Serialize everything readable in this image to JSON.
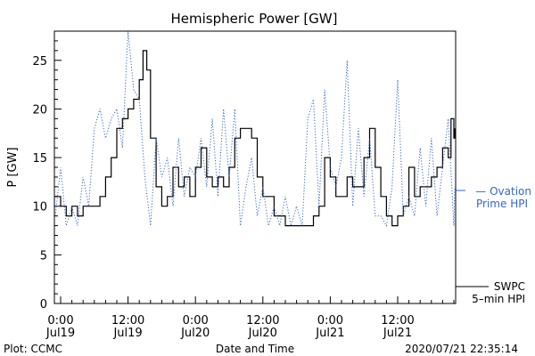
{
  "chart_data": {
    "type": "line",
    "title": "Hemispheric Power [GW]",
    "xlabel": "Date and Time",
    "ylabel": "P [GW]",
    "xlim": [
      "2020-07-19T00:00",
      "2020-07-21T22:35"
    ],
    "ylim": [
      0,
      28
    ],
    "y_ticks": [
      0,
      5,
      10,
      15,
      20,
      25
    ],
    "x_ticks": [
      {
        "t": "2020-07-19T00:00",
        "time": "0:00",
        "day": "Jul19"
      },
      {
        "t": "2020-07-19T12:00",
        "time": "12:00",
        "day": "Jul19"
      },
      {
        "t": "2020-07-20T00:00",
        "time": "0:00",
        "day": "Jul20"
      },
      {
        "t": "2020-07-20T12:00",
        "time": "12:00",
        "day": "Jul20"
      },
      {
        "t": "2020-07-21T00:00",
        "time": "0:00",
        "day": "Jul21"
      },
      {
        "t": "2020-07-21T12:00",
        "time": "12:00",
        "day": "Jul21"
      }
    ],
    "grid": false,
    "legend": [
      {
        "label_lines": [
          "— Ovation",
          "Prime HPI"
        ],
        "color": "#3366cc",
        "style": "dotted"
      },
      {
        "label_lines": [
          "SWPC",
          "5–min HPI"
        ],
        "color": "#000000",
        "style": "solid"
      }
    ],
    "series": [
      {
        "name": "SWPC 5-min HPI",
        "color": "#000000",
        "style": "step",
        "x": [
          "2020-07-18T22:00",
          "2020-07-19T00:00",
          "2020-07-19T01:00",
          "2020-07-19T02:00",
          "2020-07-19T03:00",
          "2020-07-19T04:00",
          "2020-07-19T05:00",
          "2020-07-19T06:00",
          "2020-07-19T07:00",
          "2020-07-19T08:00",
          "2020-07-19T09:00",
          "2020-07-19T10:00",
          "2020-07-19T11:00",
          "2020-07-19T12:00",
          "2020-07-19T13:00",
          "2020-07-19T14:00",
          "2020-07-19T14:40",
          "2020-07-19T15:20",
          "2020-07-19T16:00",
          "2020-07-19T17:00",
          "2020-07-19T18:00",
          "2020-07-19T19:00",
          "2020-07-19T20:00",
          "2020-07-19T21:00",
          "2020-07-19T22:00",
          "2020-07-19T23:00",
          "2020-07-20T00:00",
          "2020-07-20T01:00",
          "2020-07-20T02:00",
          "2020-07-20T03:00",
          "2020-07-20T04:00",
          "2020-07-20T05:00",
          "2020-07-20T06:00",
          "2020-07-20T07:00",
          "2020-07-20T08:00",
          "2020-07-20T09:00",
          "2020-07-20T10:00",
          "2020-07-20T11:00",
          "2020-07-20T12:00",
          "2020-07-20T14:00",
          "2020-07-20T16:00",
          "2020-07-20T18:00",
          "2020-07-20T20:00",
          "2020-07-20T21:00",
          "2020-07-20T22:00",
          "2020-07-20T23:00",
          "2020-07-21T00:00",
          "2020-07-21T01:00",
          "2020-07-21T02:00",
          "2020-07-21T03:00",
          "2020-07-21T04:00",
          "2020-07-21T05:00",
          "2020-07-21T06:00",
          "2020-07-21T07:00",
          "2020-07-21T08:00",
          "2020-07-21T09:00",
          "2020-07-21T10:00",
          "2020-07-21T11:00",
          "2020-07-21T12:00",
          "2020-07-21T13:00",
          "2020-07-21T14:00",
          "2020-07-21T15:00",
          "2020-07-21T16:00",
          "2020-07-21T17:00",
          "2020-07-21T18:00",
          "2020-07-21T19:00",
          "2020-07-21T20:00",
          "2020-07-21T21:00",
          "2020-07-21T21:30",
          "2020-07-21T22:00",
          "2020-07-21T22:35"
        ],
        "y": [
          11,
          10,
          9,
          10,
          9,
          10,
          10,
          10,
          11,
          13,
          15,
          18,
          19,
          20,
          21,
          23,
          26,
          24,
          17,
          12,
          10,
          11,
          14,
          12,
          13,
          11,
          14,
          16,
          13,
          12,
          13,
          12,
          14,
          17,
          18,
          18,
          17,
          13,
          11,
          9,
          8,
          8,
          8,
          9,
          10,
          15,
          13,
          11,
          11,
          13,
          12,
          12,
          15,
          18,
          14,
          11,
          9,
          8,
          9,
          10,
          14,
          11,
          12,
          12,
          13,
          14,
          16,
          15,
          19,
          17,
          18
        ]
      },
      {
        "name": "Ovation Prime HPI",
        "color": "#3366cc",
        "style": "dotted",
        "x": [
          "2020-07-18T22:00",
          "2020-07-19T00:00",
          "2020-07-19T01:00",
          "2020-07-19T02:00",
          "2020-07-19T03:00",
          "2020-07-19T04:00",
          "2020-07-19T05:00",
          "2020-07-19T06:00",
          "2020-07-19T07:00",
          "2020-07-19T08:00",
          "2020-07-19T09:00",
          "2020-07-19T10:00",
          "2020-07-19T11:00",
          "2020-07-19T12:00",
          "2020-07-19T13:00",
          "2020-07-19T14:00",
          "2020-07-19T15:00",
          "2020-07-19T16:00",
          "2020-07-19T17:00",
          "2020-07-19T18:00",
          "2020-07-19T19:00",
          "2020-07-19T20:00",
          "2020-07-19T21:00",
          "2020-07-19T22:00",
          "2020-07-19T23:00",
          "2020-07-20T00:00",
          "2020-07-20T01:00",
          "2020-07-20T02:00",
          "2020-07-20T03:00",
          "2020-07-20T04:00",
          "2020-07-20T05:00",
          "2020-07-20T06:00",
          "2020-07-20T07:00",
          "2020-07-20T08:00",
          "2020-07-20T09:00",
          "2020-07-20T10:00",
          "2020-07-20T11:00",
          "2020-07-20T12:00",
          "2020-07-20T13:00",
          "2020-07-20T14:00",
          "2020-07-20T15:00",
          "2020-07-20T16:00",
          "2020-07-20T17:00",
          "2020-07-20T18:00",
          "2020-07-20T19:00",
          "2020-07-20T20:00",
          "2020-07-20T21:00",
          "2020-07-20T22:00",
          "2020-07-20T23:00",
          "2020-07-21T00:00",
          "2020-07-21T01:00",
          "2020-07-21T02:00",
          "2020-07-21T03:00",
          "2020-07-21T04:00",
          "2020-07-21T05:00",
          "2020-07-21T06:00",
          "2020-07-21T07:00",
          "2020-07-21T08:00",
          "2020-07-21T09:00",
          "2020-07-21T10:00",
          "2020-07-21T11:00",
          "2020-07-21T12:00",
          "2020-07-21T13:00",
          "2020-07-21T14:00",
          "2020-07-21T15:00",
          "2020-07-21T16:00",
          "2020-07-21T17:00",
          "2020-07-21T18:00",
          "2020-07-21T19:00",
          "2020-07-21T20:00",
          "2020-07-21T21:00",
          "2020-07-21T22:00",
          "2020-07-21T22:35"
        ],
        "y": [
          9,
          14,
          8,
          10,
          8,
          13,
          10,
          18,
          20,
          17,
          19,
          20,
          16,
          28,
          22,
          21,
          13,
          8,
          17,
          13,
          15,
          10,
          17,
          11,
          14,
          13,
          17,
          12,
          19,
          11,
          20,
          13,
          20,
          8,
          12,
          15,
          9,
          12,
          8,
          10,
          8,
          11,
          8,
          10,
          8,
          19,
          21,
          10,
          22,
          14,
          12,
          15,
          25,
          10,
          18,
          11,
          17,
          9,
          9,
          8,
          12,
          23,
          9,
          11,
          9,
          16,
          10,
          17,
          9,
          14,
          19,
          8,
          12
        ]
      }
    ]
  },
  "footer": {
    "plot_credit": "Plot: CCMC",
    "timestamp": "2020/07/21 22:35:14"
  },
  "colors": {
    "ovation": "#3366cc",
    "swpc": "#000000",
    "axis": "#000000"
  }
}
